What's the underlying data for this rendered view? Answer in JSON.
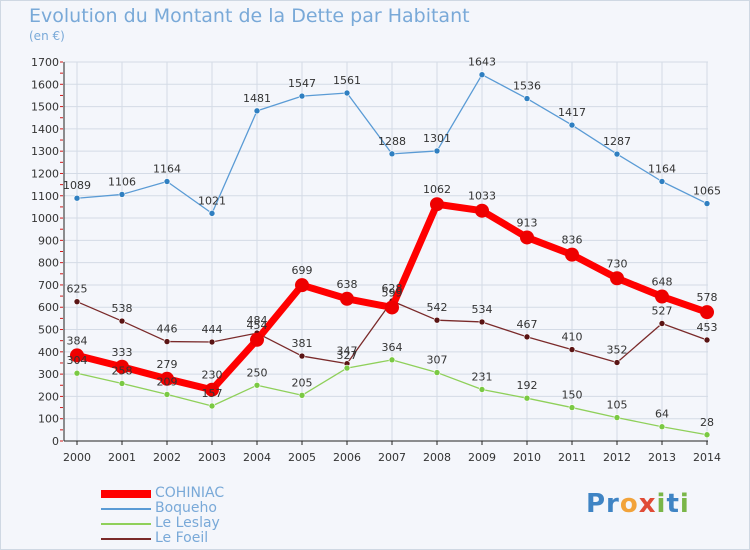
{
  "title": "Evolution du Montant de la Dette par Habitant",
  "subtitle": "(en €)",
  "logo": {
    "parts": [
      {
        "text": "Pr",
        "color": "#3f84c4"
      },
      {
        "text": "o",
        "color": "#f2a33a"
      },
      {
        "text": "x",
        "color": "#e04b36"
      },
      {
        "text": "i",
        "color": "#7ab648"
      },
      {
        "text": "t",
        "color": "#3f84c4"
      },
      {
        "text": "i",
        "color": "#7ab648"
      }
    ]
  },
  "chart_data": {
    "type": "line",
    "title": "Evolution du Montant de la Dette par Habitant",
    "subtitle": "(en €)",
    "x": [
      "2000",
      "2001",
      "2002",
      "2003",
      "2004",
      "2005",
      "2006",
      "2007",
      "2008",
      "2009",
      "2010",
      "2011",
      "2012",
      "2013",
      "2014"
    ],
    "ylim": [
      0,
      1700
    ],
    "yticks": [
      0,
      100,
      200,
      300,
      400,
      500,
      600,
      700,
      800,
      900,
      1000,
      1100,
      1200,
      1300,
      1400,
      1500,
      1600,
      1700
    ],
    "grid": true,
    "legend_position": "bottom-left",
    "series": [
      {
        "name": "Boqueho",
        "color": "#5a9bd5",
        "pointColor": "#2f7fc1",
        "emphasis": false,
        "values": [
          1089,
          1106,
          1164,
          1021,
          1481,
          1547,
          1561,
          1288,
          1301,
          1643,
          1536,
          1417,
          1287,
          1164,
          1065
        ]
      },
      {
        "name": "Le Foeil",
        "color": "#7a2a2a",
        "pointColor": "#5a1414",
        "emphasis": false,
        "values": [
          625,
          538,
          446,
          444,
          484,
          381,
          347,
          628,
          542,
          534,
          467,
          410,
          352,
          527,
          453
        ]
      },
      {
        "name": "Le Leslay",
        "color": "#8fd05a",
        "pointColor": "#7ac943",
        "emphasis": false,
        "values": [
          304,
          258,
          209,
          157,
          250,
          205,
          327,
          364,
          307,
          231,
          192,
          150,
          105,
          64,
          28
        ]
      },
      {
        "name": "COHINIAC",
        "color": "#ff0000",
        "pointColor": "#ee0000",
        "emphasis": true,
        "values": [
          384,
          333,
          279,
          230,
          454,
          699,
          638,
          599,
          1062,
          1033,
          913,
          836,
          730,
          648,
          578
        ]
      }
    ],
    "legend_order": [
      "COHINIAC",
      "Boqueho",
      "Le Leslay",
      "Le Foeil"
    ]
  }
}
